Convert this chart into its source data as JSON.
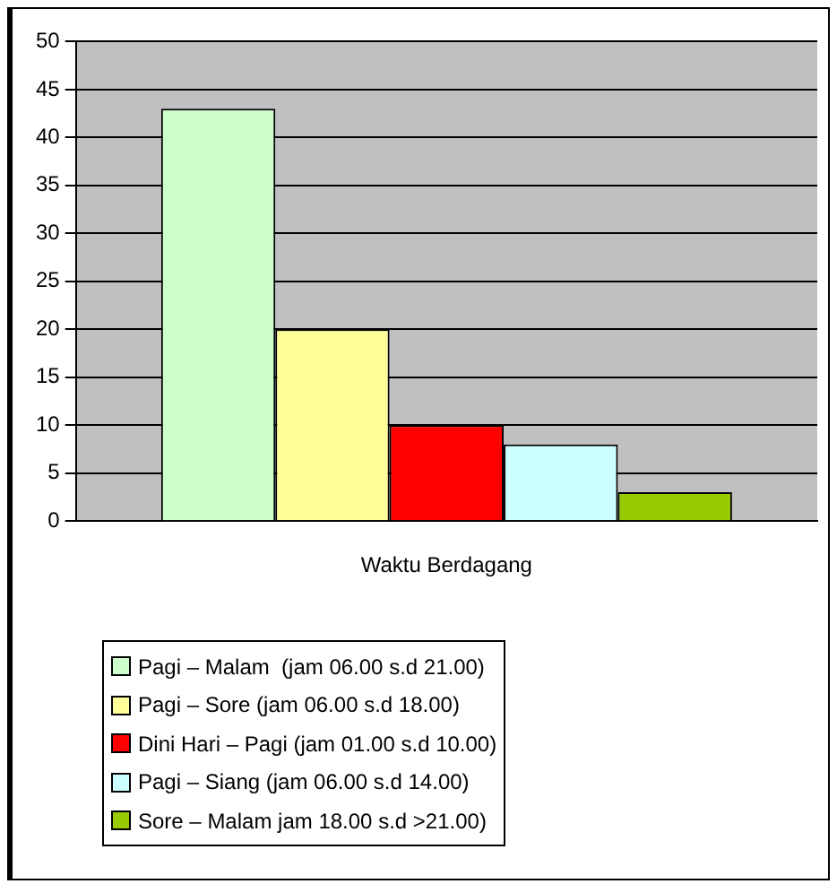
{
  "chart_data": {
    "type": "bar",
    "categories": [
      "Waktu Berdagang"
    ],
    "series": [
      {
        "name": "Pagi – Malam  (jam 06.00 s.d 21.00)",
        "color": "#ccffcc",
        "values": [
          43
        ]
      },
      {
        "name": "Pagi – Sore (jam 06.00 s.d 18.00)",
        "color": "#ffff99",
        "values": [
          20
        ]
      },
      {
        "name": "Dini Hari – Pagi (jam 01.00 s.d 10.00)",
        "color": "#ff0000",
        "values": [
          10
        ]
      },
      {
        "name": "Pagi – Siang (jam 06.00 s.d 14.00)",
        "color": "#ccffff",
        "values": [
          8
        ]
      },
      {
        "name": "Sore – Malam jam 18.00 s.d >21.00)",
        "color": "#99cc00",
        "values": [
          3
        ]
      }
    ],
    "ylim": [
      0,
      50
    ],
    "yticks": [
      0,
      5,
      10,
      15,
      20,
      25,
      30,
      35,
      40,
      45,
      50
    ],
    "grid": "y",
    "legend": "bottom"
  }
}
